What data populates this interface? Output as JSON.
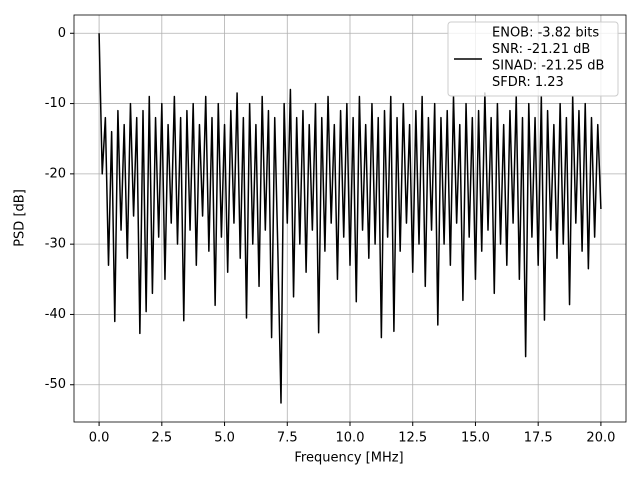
{
  "chart_data": {
    "type": "line",
    "xlabel": "Frequency [MHz]",
    "ylabel": "PSD [dB]",
    "legend_text": [
      "ENOB: -3.82 bits",
      "SNR: -21.21 dB",
      "SINAD: -21.25 dB",
      "SFDR: 1.23"
    ],
    "legend": "upper right",
    "grid": true,
    "xlim": [
      -1.0,
      21.0
    ],
    "ylim": [
      -55.3,
      2.6
    ],
    "xticks": [
      {
        "value": 0,
        "label": "0.0"
      },
      2.5,
      {
        "value": 5,
        "label": "5.0"
      },
      7.5,
      {
        "value": 10,
        "label": "10.0"
      },
      12.5,
      {
        "value": 15,
        "label": "15.0"
      },
      17.5,
      {
        "value": 20,
        "label": "20.0"
      }
    ],
    "yticks": [
      0,
      -10,
      -20,
      -30,
      -40,
      -50
    ],
    "x": [
      0,
      0.125,
      0.25,
      0.375,
      0.5,
      0.625,
      0.75,
      0.875,
      1,
      1.125,
      1.25,
      1.375,
      1.5,
      1.625,
      1.75,
      1.875,
      2,
      2.125,
      2.25,
      2.375,
      2.5,
      2.625,
      2.75,
      2.875,
      3,
      3.125,
      3.25,
      3.375,
      3.5,
      3.625,
      3.75,
      3.875,
      4,
      4.125,
      4.25,
      4.375,
      4.5,
      4.625,
      4.75,
      4.875,
      5,
      5.125,
      5.25,
      5.375,
      5.5,
      5.625,
      5.75,
      5.875,
      6,
      6.125,
      6.25,
      6.375,
      6.5,
      6.625,
      6.75,
      6.875,
      7,
      7.125,
      7.25,
      7.375,
      7.5,
      7.625,
      7.75,
      7.875,
      8,
      8.125,
      8.25,
      8.375,
      8.5,
      8.625,
      8.75,
      8.875,
      9,
      9.125,
      9.25,
      9.375,
      9.5,
      9.625,
      9.75,
      9.875,
      10,
      10.125,
      10.25,
      10.375,
      10.5,
      10.625,
      10.75,
      10.875,
      11,
      11.125,
      11.25,
      11.375,
      11.5,
      11.625,
      11.75,
      11.875,
      12,
      12.125,
      12.25,
      12.375,
      12.5,
      12.625,
      12.75,
      12.875,
      13,
      13.125,
      13.25,
      13.375,
      13.5,
      13.625,
      13.75,
      13.875,
      14,
      14.125,
      14.25,
      14.375,
      14.5,
      14.625,
      14.75,
      14.875,
      15,
      15.125,
      15.25,
      15.375,
      15.5,
      15.625,
      15.75,
      15.875,
      16,
      16.125,
      16.25,
      16.375,
      16.5,
      16.625,
      16.75,
      16.875,
      17,
      17.125,
      17.25,
      17.375,
      17.5,
      17.625,
      17.75,
      17.875,
      18,
      18.125,
      18.25,
      18.375,
      18.5,
      18.625,
      18.75,
      18.875,
      19,
      19.125,
      19.25,
      19.375,
      19.5,
      19.625,
      19.75,
      19.875,
      20
    ],
    "series": [
      {
        "color": "#000000",
        "values": [
          0,
          -20,
          -12,
          -33,
          -14,
          -41,
          -11,
          -28,
          -13,
          -32,
          -10,
          -26,
          -12,
          -42.7,
          -11,
          -39.6,
          -9,
          -37,
          -12,
          -29,
          -10,
          -35,
          -13,
          -27,
          -9,
          -30,
          -12,
          -40.9,
          -11,
          -28,
          -10,
          -33,
          -13,
          -26,
          -9,
          -31,
          -12,
          -38.7,
          -10,
          -29,
          -13,
          -34,
          -11,
          -27,
          -8.5,
          -32,
          -12,
          -40.5,
          -10,
          -30,
          -13,
          -36,
          -9,
          -28,
          -11,
          -43.3,
          -12,
          -31,
          -52.6,
          -10,
          -27,
          -8,
          -37.5,
          -12,
          -30,
          -11,
          -34,
          -13,
          -28,
          -10,
          -42.6,
          -12,
          -31,
          -9,
          -27,
          -13,
          -35,
          -11,
          -29,
          -10,
          -33,
          -12,
          -38.2,
          -9,
          -28,
          -13,
          -32,
          -10,
          -30,
          -12,
          -43.3,
          -11,
          -29,
          -9,
          -42.4,
          -12,
          -31,
          -10,
          -27,
          -13,
          -34,
          -11,
          -30,
          -9,
          -36,
          -12,
          -28,
          -10,
          -41.5,
          -12,
          -30,
          -11,
          -33,
          -9,
          -27,
          -13,
          -38,
          -10,
          -29,
          -12,
          -35,
          -11,
          -31,
          -8.5,
          -28,
          -12,
          -37,
          -10,
          -30,
          -13,
          -33,
          -11,
          -27,
          -9,
          -35,
          -12,
          -46,
          -10,
          -29,
          -12,
          -33,
          -9,
          -40.8,
          -11,
          -28,
          -13,
          -32,
          -10,
          -30,
          -12,
          -38.6,
          -9,
          -27,
          -11,
          -31,
          -10,
          -33.5,
          -12,
          -29,
          -13,
          -25
        ]
      }
    ]
  }
}
